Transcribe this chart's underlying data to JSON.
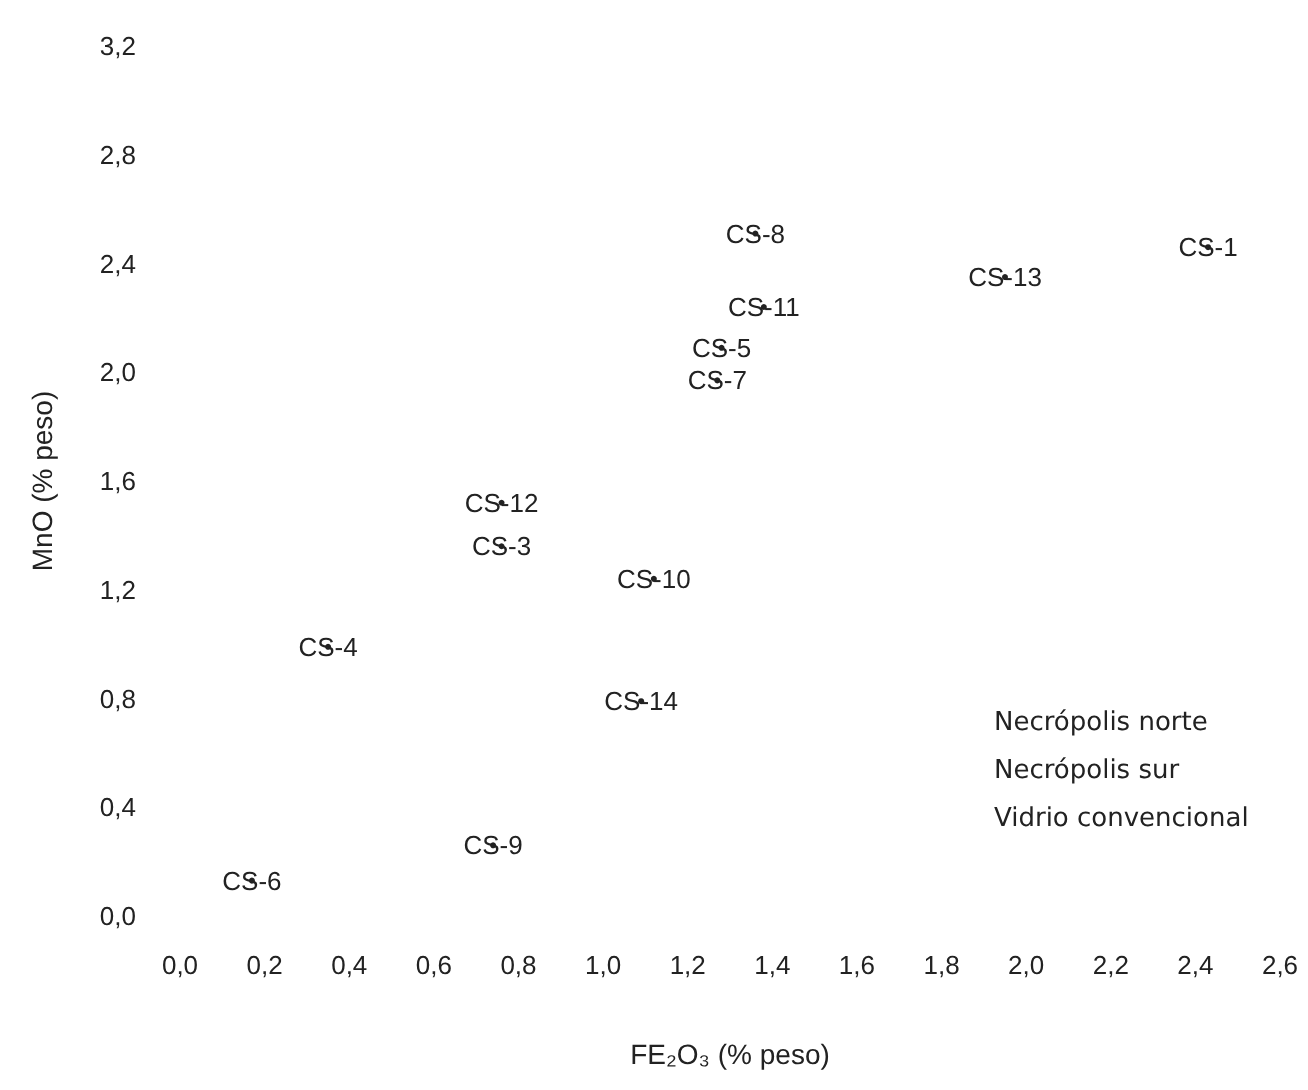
{
  "chart_data": {
    "type": "scatter",
    "xlabel": "FE₂O₃ (% peso)",
    "ylabel": "MnO (% peso)",
    "marker": "circle",
    "grid": false,
    "x": [
      2.43,
      1.28,
      0.76,
      0.35,
      1.27,
      0.17,
      1.36,
      0.74,
      1.12,
      1.38,
      0.76,
      1.95,
      1.09
    ],
    "values": [
      2.46,
      2.09,
      1.36,
      0.99,
      1.97,
      0.13,
      2.51,
      0.26,
      1.24,
      2.24,
      1.52,
      2.35,
      0.79
    ],
    "value_labels": [
      "CS-1",
      "CS-5",
      "CS-3",
      "CS-4",
      "CS-7",
      "CS-6",
      "CS-8",
      "CS-9",
      "CS-10",
      "CS-11",
      "CS-12",
      "CS-13",
      "CS-14"
    ],
    "xlim": [
      0,
      2.6
    ],
    "ylim": [
      0,
      3.2
    ],
    "xticks": [
      {
        "value": 0,
        "label": "0,0"
      },
      {
        "value": 0.2,
        "label": "0,2"
      },
      {
        "value": 0.4,
        "label": "0,4"
      },
      {
        "value": 0.6,
        "label": "0,6"
      },
      {
        "value": 0.8,
        "label": "0,8"
      },
      {
        "value": 1,
        "label": "1,0"
      },
      {
        "value": 1.2,
        "label": "1,2"
      },
      {
        "value": 1.4,
        "label": "1,4"
      },
      {
        "value": 1.6,
        "label": "1,6"
      },
      {
        "value": 1.8,
        "label": "1,8"
      },
      {
        "value": 2,
        "label": "2,0"
      },
      {
        "value": 2.2,
        "label": "2,2"
      },
      {
        "value": 2.4,
        "label": "2,4"
      },
      {
        "value": 2.6,
        "label": "2,6"
      }
    ],
    "yticks": [
      {
        "value": 0,
        "label": "0,0"
      },
      {
        "value": 0.4,
        "label": "0,4"
      },
      {
        "value": 0.8,
        "label": "0,8"
      },
      {
        "value": 1.2,
        "label": "1,2"
      },
      {
        "value": 1.6,
        "label": "1,6"
      },
      {
        "value": 2,
        "label": "2,0"
      },
      {
        "value": 2.4,
        "label": "2,4"
      },
      {
        "value": 2.8,
        "label": "2,8"
      },
      {
        "value": 3.2,
        "label": "3,2"
      }
    ],
    "annotations": [
      "Necrópolis norte",
      "Necrópolis sur",
      "Vidrio convencional"
    ]
  }
}
